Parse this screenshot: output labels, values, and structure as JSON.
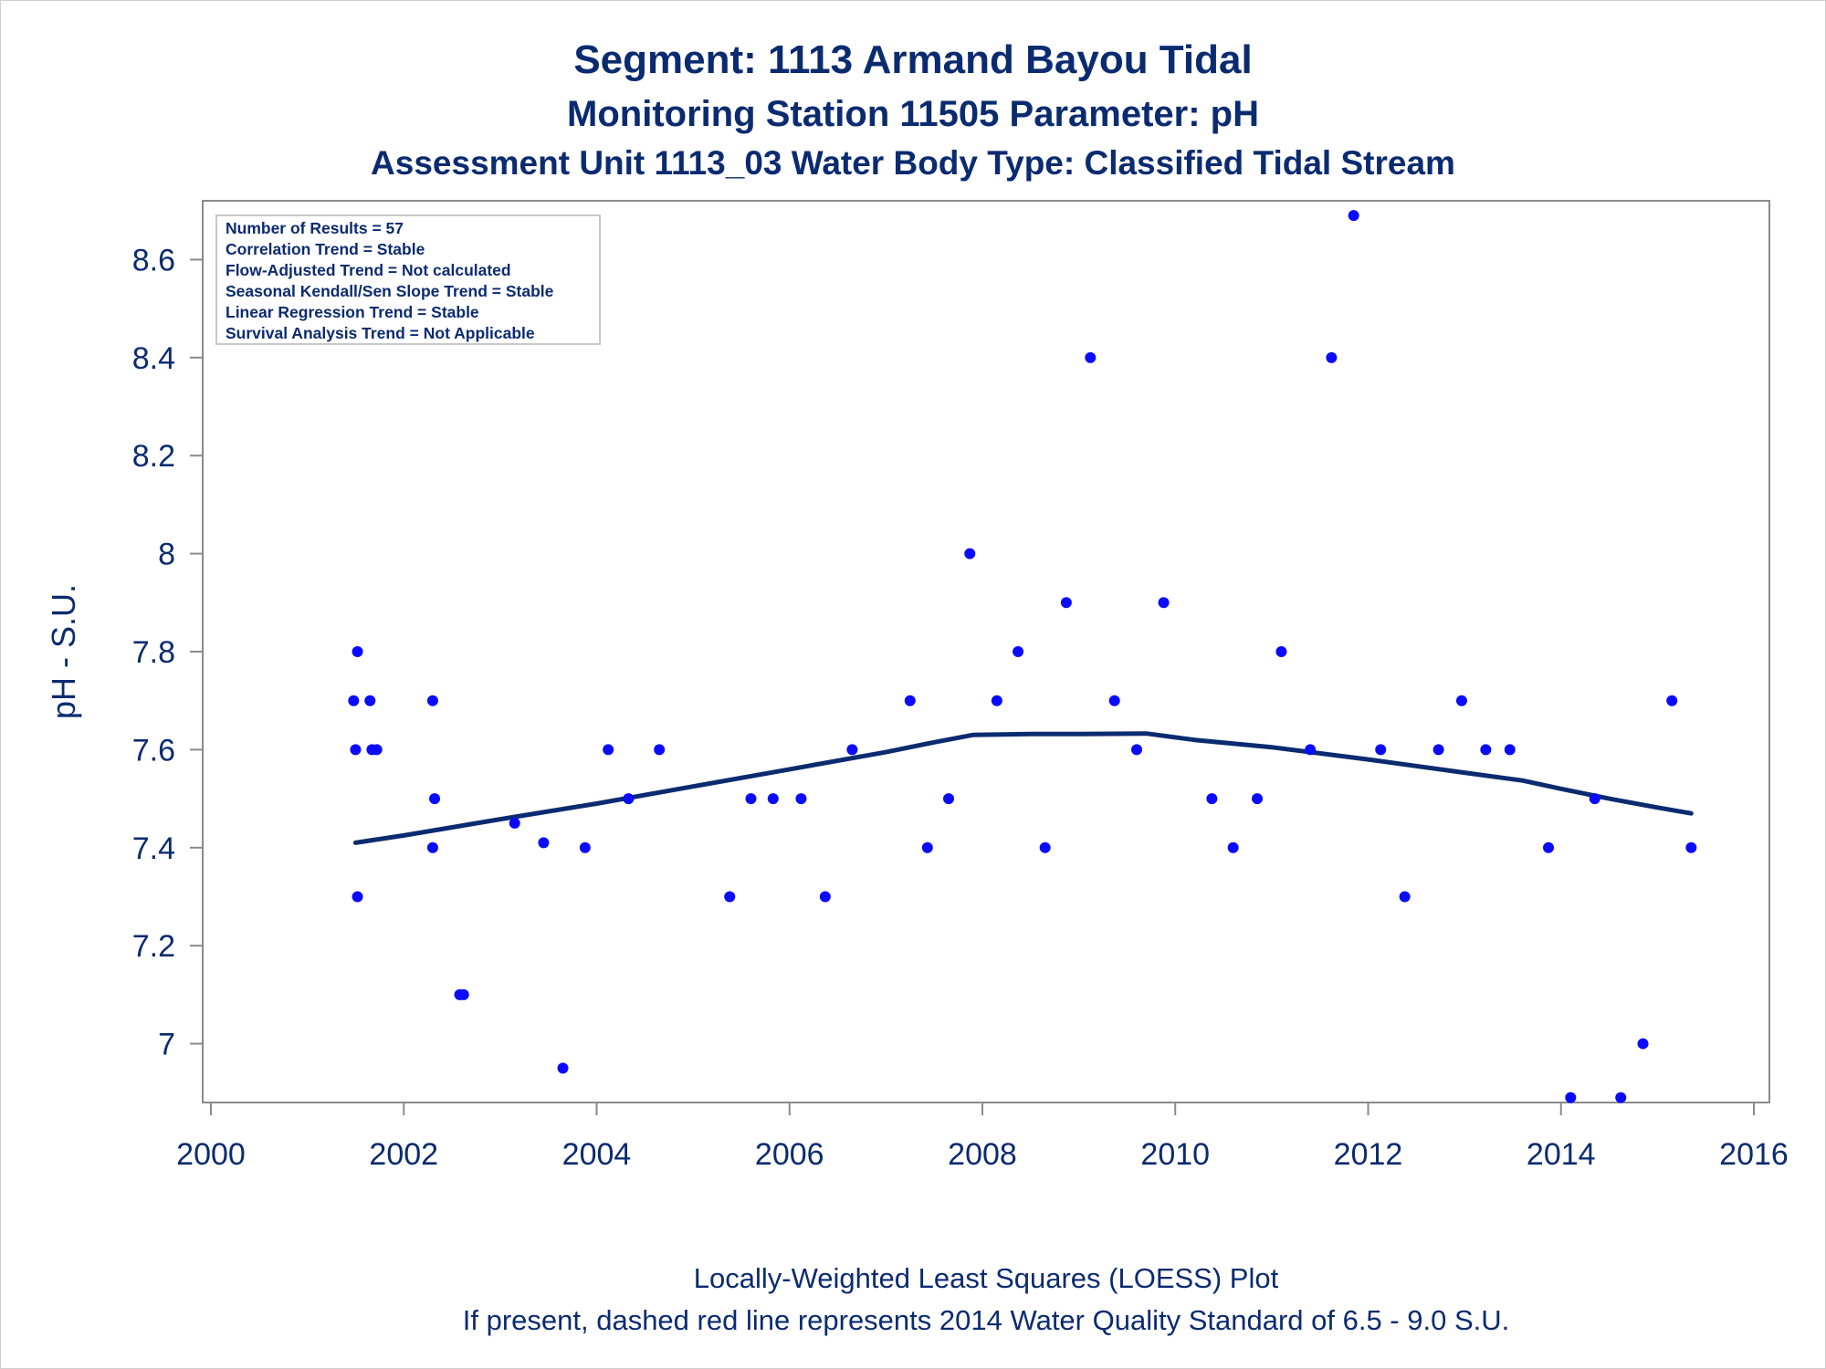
{
  "chart_data": {
    "type": "scatter",
    "title": "Segment: 1113  Armand Bayou Tidal",
    "subtitle": "Monitoring Station 11505 Parameter: pH",
    "subtitle2": "Assessment Unit 1113_03   Water Body Type: Classified Tidal Stream",
    "xlabel": "",
    "ylabel": "pH - S.U.",
    "footnote1": "Locally-Weighted Least Squares (LOESS) Plot",
    "footnote2": "If present, dashed red line represents 2014 Water Quality Standard of 6.5 - 9.0 S.U.",
    "xlim": [
      2000,
      2016
    ],
    "ylim": [
      6.88,
      8.72
    ],
    "xticks": [
      2000,
      2002,
      2004,
      2006,
      2008,
      2010,
      2012,
      2014,
      2016
    ],
    "yticks": [
      7,
      7.2,
      7.4,
      7.6,
      7.8,
      8,
      8.2,
      8.4,
      8.6
    ],
    "xtick_labels": [
      "2000",
      "2002",
      "2004",
      "2006",
      "2008",
      "2010",
      "2012",
      "2014",
      "2016"
    ],
    "ytick_labels": [
      "7",
      "7.2",
      "7.4",
      "7.6",
      "7.8",
      "8",
      "8.2",
      "8.4",
      "8.6"
    ],
    "grid": false,
    "legend_position": "top-left",
    "stats_box": [
      "Number of Results = 57",
      "Correlation Trend = Stable",
      "Flow-Adjusted Trend = Not calculated",
      "Seasonal Kendall/Sen Slope Trend = Stable",
      "Linear Regression Trend = Stable",
      "Survival Analysis Trend = Not Applicable"
    ],
    "point_color": "#0a0aff",
    "line_color": "#0b2b70",
    "points": [
      {
        "x": 2001.48,
        "y": 7.7
      },
      {
        "x": 2001.5,
        "y": 7.6
      },
      {
        "x": 2001.52,
        "y": 7.8
      },
      {
        "x": 2001.52,
        "y": 7.3
      },
      {
        "x": 2001.65,
        "y": 7.7
      },
      {
        "x": 2001.67,
        "y": 7.6
      },
      {
        "x": 2002.3,
        "y": 7.7
      },
      {
        "x": 2002.32,
        "y": 7.5
      },
      {
        "x": 2002.3,
        "y": 7.4
      },
      {
        "x": 2002.58,
        "y": 7.1
      },
      {
        "x": 2002.62,
        "y": 7.1
      },
      {
        "x": 2003.15,
        "y": 7.45
      },
      {
        "x": 2003.45,
        "y": 7.41
      },
      {
        "x": 2003.65,
        "y": 6.95
      },
      {
        "x": 2003.88,
        "y": 7.4
      },
      {
        "x": 2004.12,
        "y": 7.6
      },
      {
        "x": 2004.33,
        "y": 7.5
      },
      {
        "x": 2004.65,
        "y": 7.6
      },
      {
        "x": 2005.38,
        "y": 7.3
      },
      {
        "x": 2005.6,
        "y": 7.5
      },
      {
        "x": 2005.83,
        "y": 7.5
      },
      {
        "x": 2006.12,
        "y": 7.5
      },
      {
        "x": 2006.37,
        "y": 7.3
      },
      {
        "x": 2006.65,
        "y": 7.6
      },
      {
        "x": 2007.25,
        "y": 7.7
      },
      {
        "x": 2007.43,
        "y": 7.4
      },
      {
        "x": 2007.65,
        "y": 7.5
      },
      {
        "x": 2007.87,
        "y": 8.0
      },
      {
        "x": 2008.15,
        "y": 7.7
      },
      {
        "x": 2008.37,
        "y": 7.8
      },
      {
        "x": 2008.65,
        "y": 7.4
      },
      {
        "x": 2008.87,
        "y": 7.9
      },
      {
        "x": 2009.12,
        "y": 8.4
      },
      {
        "x": 2009.37,
        "y": 7.7
      },
      {
        "x": 2009.6,
        "y": 7.6
      },
      {
        "x": 2009.88,
        "y": 7.9
      },
      {
        "x": 2010.38,
        "y": 7.5
      },
      {
        "x": 2010.6,
        "y": 7.4
      },
      {
        "x": 2010.85,
        "y": 7.5
      },
      {
        "x": 2011.1,
        "y": 7.8
      },
      {
        "x": 2011.4,
        "y": 7.6
      },
      {
        "x": 2011.62,
        "y": 8.4
      },
      {
        "x": 2011.85,
        "y": 8.69
      },
      {
        "x": 2012.13,
        "y": 7.6
      },
      {
        "x": 2012.38,
        "y": 7.3
      },
      {
        "x": 2012.73,
        "y": 7.6
      },
      {
        "x": 2012.97,
        "y": 7.7
      },
      {
        "x": 2013.22,
        "y": 7.6
      },
      {
        "x": 2013.47,
        "y": 7.6
      },
      {
        "x": 2013.87,
        "y": 7.4
      },
      {
        "x": 2014.1,
        "y": 6.89
      },
      {
        "x": 2014.35,
        "y": 7.5
      },
      {
        "x": 2014.62,
        "y": 6.89
      },
      {
        "x": 2014.85,
        "y": 7.0
      },
      {
        "x": 2015.15,
        "y": 7.7
      },
      {
        "x": 2015.35,
        "y": 7.4
      },
      {
        "x": 2001.72,
        "y": 7.6
      }
    ],
    "loess": [
      {
        "x": 2001.5,
        "y": 7.41
      },
      {
        "x": 2002.0,
        "y": 7.425
      },
      {
        "x": 2003.0,
        "y": 7.458
      },
      {
        "x": 2004.0,
        "y": 7.49
      },
      {
        "x": 2005.0,
        "y": 7.525
      },
      {
        "x": 2006.0,
        "y": 7.56
      },
      {
        "x": 2007.0,
        "y": 7.595
      },
      {
        "x": 2007.5,
        "y": 7.615
      },
      {
        "x": 2007.9,
        "y": 7.63
      },
      {
        "x": 2008.5,
        "y": 7.632
      },
      {
        "x": 2009.0,
        "y": 7.632
      },
      {
        "x": 2009.7,
        "y": 7.633
      },
      {
        "x": 2010.2,
        "y": 7.62
      },
      {
        "x": 2011.0,
        "y": 7.605
      },
      {
        "x": 2012.0,
        "y": 7.58
      },
      {
        "x": 2013.0,
        "y": 7.553
      },
      {
        "x": 2013.6,
        "y": 7.537
      },
      {
        "x": 2014.0,
        "y": 7.52
      },
      {
        "x": 2014.5,
        "y": 7.5
      },
      {
        "x": 2015.0,
        "y": 7.482
      },
      {
        "x": 2015.35,
        "y": 7.47
      }
    ]
  }
}
